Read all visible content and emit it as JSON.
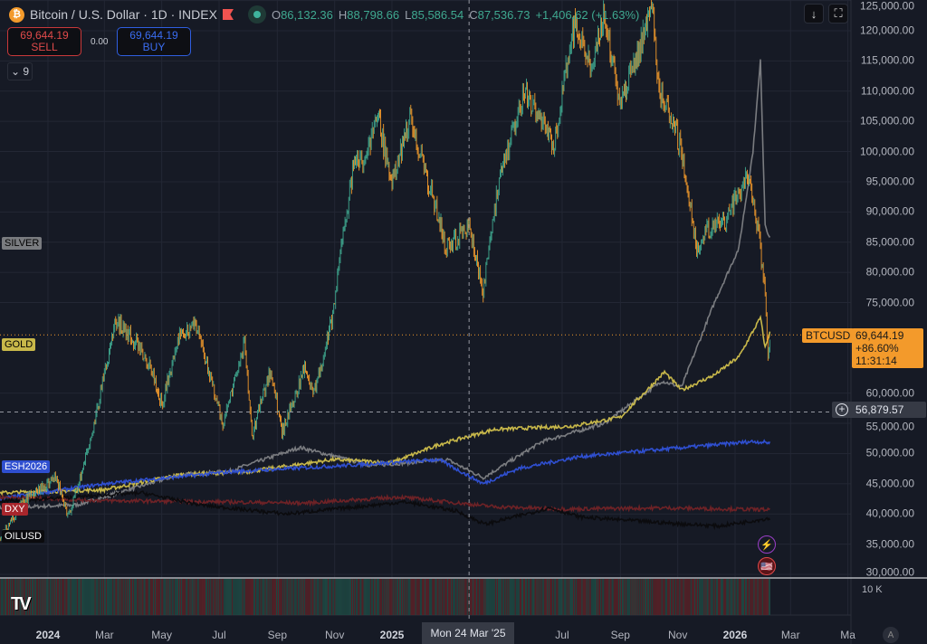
{
  "header": {
    "title": "Bitcoin / U.S. Dollar · 1D · INDEX",
    "open_label": "O",
    "open": "86,132.36",
    "high_label": "H",
    "high": "88,798.66",
    "low_label": "L",
    "low": "85,586.54",
    "close_label": "C",
    "close": "87,536.73",
    "change": "+1,406.62 (+1.63%)"
  },
  "trade": {
    "sell_price": "69,644.19",
    "sell_label": "SELL",
    "spread": "0.00",
    "buy_price": "69,644.19",
    "buy_label": "BUY"
  },
  "indicators_collapsed": "9",
  "toolbar": {
    "download_icon": "↓",
    "fullscreen_icon": "⛶"
  },
  "price_axis": {
    "labels": [
      "125,000.00",
      "120,000.00",
      "115,000.00",
      "110,000.00",
      "105,000.00",
      "100,000.00",
      "95,000.00",
      "90,000.00",
      "85,000.00",
      "80,000.00",
      "75,000.00",
      "60,000.00",
      "55,000.00",
      "50,000.00",
      "45,000.00",
      "40,000.00",
      "35,000.00",
      "30,000.00"
    ],
    "values": [
      125000,
      120000,
      115000,
      110000,
      105000,
      100000,
      95000,
      90000,
      85000,
      80000,
      75000,
      60000,
      55000,
      50000,
      45000,
      40000,
      35000,
      30000
    ],
    "volume_label": "10 K"
  },
  "last_price": {
    "symbol": "BTCUSD",
    "price": "69,644.19",
    "change": "+86.60%",
    "countdown": "11:31:14",
    "value": 69644.19
  },
  "crosshair": {
    "price": "56,879.57",
    "value": 56879.57,
    "date": "Mon 24 Mar '25",
    "date_iso": "2025-03-24"
  },
  "time_axis": [
    {
      "t": "2024",
      "d": "2024-01-01",
      "y": true
    },
    {
      "t": "Mar",
      "d": "2024-03-01"
    },
    {
      "t": "May",
      "d": "2024-05-01"
    },
    {
      "t": "Jul",
      "d": "2024-07-01"
    },
    {
      "t": "Sep",
      "d": "2024-09-01"
    },
    {
      "t": "Nov",
      "d": "2024-11-01"
    },
    {
      "t": "2025",
      "d": "2025-01-01",
      "y": true
    },
    {
      "t": "Jul",
      "d": "2025-07-01"
    },
    {
      "t": "Sep",
      "d": "2025-09-01"
    },
    {
      "t": "Nov",
      "d": "2025-11-01"
    },
    {
      "t": "2026",
      "d": "2026-01-01",
      "y": true
    },
    {
      "t": "Mar",
      "d": "2026-03-01"
    },
    {
      "t": "Ma",
      "d": "2026-05-01"
    }
  ],
  "auto_label": "A",
  "colors": {
    "up": "#3fa990",
    "down": "#f39a2b",
    "gold": "#c8b84a",
    "silver": "#7a7c80",
    "es": "#2f4fd0",
    "dxy": "#6e2226",
    "oil": "#0b0b0e"
  },
  "symbols": [
    {
      "name": "SILVER",
      "color": "#7a7c80",
      "text": "#000",
      "points": [
        [
          "2023-11-10",
          41000
        ],
        [
          "2024-02-01",
          41500
        ],
        [
          "2024-05-20",
          46500
        ],
        [
          "2024-07-10",
          47000
        ],
        [
          "2024-09-25",
          51000
        ],
        [
          "2024-12-10",
          48000
        ],
        [
          "2025-03-01",
          49000
        ],
        [
          "2025-04-08",
          46000
        ],
        [
          "2025-06-10",
          52000
        ],
        [
          "2025-08-15",
          55000
        ],
        [
          "2025-10-15",
          62000
        ],
        [
          "2025-11-05",
          61000
        ],
        [
          "2025-12-10",
          75000
        ],
        [
          "2026-01-05",
          84000
        ],
        [
          "2026-01-20",
          100000
        ],
        [
          "2026-01-28",
          115000
        ],
        [
          "2026-02-02",
          88000
        ],
        [
          "2026-02-07",
          85500
        ]
      ]
    },
    {
      "name": "GOLD",
      "color": "#c8b84a",
      "text": "#000",
      "points": [
        [
          "2023-11-10",
          43500
        ],
        [
          "2024-03-01",
          44000
        ],
        [
          "2024-05-20",
          46500
        ],
        [
          "2024-08-01",
          47000
        ],
        [
          "2024-10-30",
          49000
        ],
        [
          "2025-01-01",
          48500
        ],
        [
          "2025-02-20",
          51500
        ],
        [
          "2025-04-20",
          54000
        ],
        [
          "2025-07-10",
          54500
        ],
        [
          "2025-09-01",
          56000
        ],
        [
          "2025-10-18",
          63500
        ],
        [
          "2025-11-05",
          60500
        ],
        [
          "2025-12-10",
          63000
        ],
        [
          "2026-01-05",
          66000
        ],
        [
          "2026-01-28",
          72500
        ],
        [
          "2026-02-02",
          67500
        ],
        [
          "2026-02-07",
          70000
        ]
      ]
    },
    {
      "name": "ESH2026",
      "color": "#2f4fd0",
      "text": "#fff",
      "points": [
        [
          "2023-11-10",
          42500
        ],
        [
          "2024-03-01",
          45000
        ],
        [
          "2024-07-15",
          47000
        ],
        [
          "2024-11-10",
          48000
        ],
        [
          "2025-02-20",
          49000
        ],
        [
          "2025-04-08",
          45000
        ],
        [
          "2025-05-15",
          47500
        ],
        [
          "2025-07-20",
          49500
        ],
        [
          "2025-10-01",
          50500
        ],
        [
          "2025-12-15",
          51500
        ],
        [
          "2026-01-20",
          52000
        ],
        [
          "2026-02-07",
          51800
        ]
      ]
    },
    {
      "name": "DXY",
      "color": "#a8262c",
      "line": "#6e2226",
      "text": "#fff",
      "points": [
        [
          "2023-11-10",
          42800
        ],
        [
          "2024-03-01",
          42200
        ],
        [
          "2024-07-01",
          42000
        ],
        [
          "2024-10-01",
          41800
        ],
        [
          "2025-01-10",
          42800
        ],
        [
          "2025-04-20",
          41200
        ],
        [
          "2025-07-01",
          40800
        ],
        [
          "2025-10-15",
          41000
        ],
        [
          "2026-02-07",
          40700
        ]
      ]
    },
    {
      "name": "OILUSD",
      "color": "#0b0b0e",
      "text": "#fff",
      "points": [
        [
          "2023-11-10",
          42000
        ],
        [
          "2024-04-10",
          43500
        ],
        [
          "2024-06-10",
          41500
        ],
        [
          "2024-09-10",
          40000
        ],
        [
          "2025-01-15",
          42000
        ],
        [
          "2025-03-10",
          40500
        ],
        [
          "2025-04-10",
          38300
        ],
        [
          "2025-06-18",
          41000
        ],
        [
          "2025-07-20",
          39500
        ],
        [
          "2025-10-20",
          38500
        ],
        [
          "2025-12-15",
          38000
        ],
        [
          "2026-02-07",
          39300
        ]
      ]
    }
  ],
  "btc_anchors": [
    [
      "2023-11-10",
      35500
    ],
    [
      "2023-12-05",
      42000
    ],
    [
      "2024-01-10",
      46000
    ],
    [
      "2024-01-23",
      39500
    ],
    [
      "2024-02-15",
      52000
    ],
    [
      "2024-03-13",
      72000
    ],
    [
      "2024-04-01",
      69000
    ],
    [
      "2024-04-20",
      64000
    ],
    [
      "2024-05-01",
      58000
    ],
    [
      "2024-05-20",
      70000
    ],
    [
      "2024-06-07",
      71000
    ],
    [
      "2024-07-05",
      55000
    ],
    [
      "2024-07-28",
      68000
    ],
    [
      "2024-08-05",
      53000
    ],
    [
      "2024-08-25",
      64000
    ],
    [
      "2024-09-06",
      53500
    ],
    [
      "2024-09-30",
      64000
    ],
    [
      "2024-10-10",
      60000
    ],
    [
      "2024-10-29",
      72000
    ],
    [
      "2024-11-12",
      88000
    ],
    [
      "2024-11-22",
      98000
    ],
    [
      "2024-12-05",
      99000
    ],
    [
      "2024-12-17",
      106000
    ],
    [
      "2025-01-01",
      94000
    ],
    [
      "2025-01-20",
      106000
    ],
    [
      "2025-02-05",
      97000
    ],
    [
      "2025-02-28",
      84000
    ],
    [
      "2025-03-24",
      87500
    ],
    [
      "2025-04-08",
      77000
    ],
    [
      "2025-04-22",
      93000
    ],
    [
      "2025-05-22",
      110000
    ],
    [
      "2025-06-22",
      101000
    ],
    [
      "2025-07-14",
      121000
    ],
    [
      "2025-08-02",
      113000
    ],
    [
      "2025-08-14",
      123000
    ],
    [
      "2025-09-01",
      108000
    ],
    [
      "2025-10-06",
      124000
    ],
    [
      "2025-10-11",
      111000
    ],
    [
      "2025-11-04",
      101000
    ],
    [
      "2025-11-21",
      84000
    ],
    [
      "2025-12-01",
      87000
    ],
    [
      "2025-12-20",
      88000
    ],
    [
      "2026-01-14",
      96000
    ],
    [
      "2026-01-25",
      88000
    ],
    [
      "2026-02-02",
      76000
    ],
    [
      "2026-02-05",
      67000
    ],
    [
      "2026-02-07",
      69644
    ]
  ],
  "events": [
    {
      "name": "lightning-event",
      "glyph": "⚡"
    },
    {
      "name": "us-flag-event",
      "glyph": "🇺🇸"
    }
  ]
}
